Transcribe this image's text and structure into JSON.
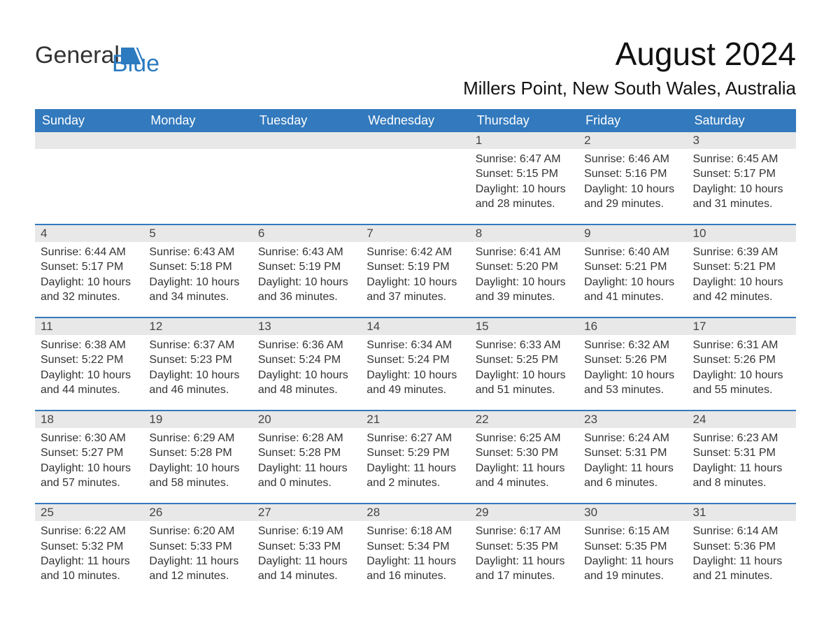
{
  "logo": {
    "word1": "General",
    "word2": "Blue"
  },
  "title": "August 2024",
  "location": "Millers Point, New South Wales, Australia",
  "colors": {
    "header_bg": "#3279bd",
    "header_text": "#ffffff",
    "daynum_bg": "#e8e8e8",
    "cell_border": "#3279bd",
    "text": "#333333",
    "logo_accent": "#2c7bc0",
    "page_bg": "#ffffff"
  },
  "layout": {
    "columns": 7,
    "rows": 5,
    "title_fontsize": 46,
    "location_fontsize": 26,
    "header_fontsize": 18,
    "body_fontsize": 16,
    "daynum_fontsize": 17,
    "logo_fontsize": 34
  },
  "weekdays": [
    "Sunday",
    "Monday",
    "Tuesday",
    "Wednesday",
    "Thursday",
    "Friday",
    "Saturday"
  ],
  "weeks": [
    [
      {
        "day": "",
        "sunrise": "",
        "sunset": "",
        "daylight": ""
      },
      {
        "day": "",
        "sunrise": "",
        "sunset": "",
        "daylight": ""
      },
      {
        "day": "",
        "sunrise": "",
        "sunset": "",
        "daylight": ""
      },
      {
        "day": "",
        "sunrise": "",
        "sunset": "",
        "daylight": ""
      },
      {
        "day": "1",
        "sunrise": "Sunrise: 6:47 AM",
        "sunset": "Sunset: 5:15 PM",
        "daylight": "Daylight: 10 hours and 28 minutes."
      },
      {
        "day": "2",
        "sunrise": "Sunrise: 6:46 AM",
        "sunset": "Sunset: 5:16 PM",
        "daylight": "Daylight: 10 hours and 29 minutes."
      },
      {
        "day": "3",
        "sunrise": "Sunrise: 6:45 AM",
        "sunset": "Sunset: 5:17 PM",
        "daylight": "Daylight: 10 hours and 31 minutes."
      }
    ],
    [
      {
        "day": "4",
        "sunrise": "Sunrise: 6:44 AM",
        "sunset": "Sunset: 5:17 PM",
        "daylight": "Daylight: 10 hours and 32 minutes."
      },
      {
        "day": "5",
        "sunrise": "Sunrise: 6:43 AM",
        "sunset": "Sunset: 5:18 PM",
        "daylight": "Daylight: 10 hours and 34 minutes."
      },
      {
        "day": "6",
        "sunrise": "Sunrise: 6:43 AM",
        "sunset": "Sunset: 5:19 PM",
        "daylight": "Daylight: 10 hours and 36 minutes."
      },
      {
        "day": "7",
        "sunrise": "Sunrise: 6:42 AM",
        "sunset": "Sunset: 5:19 PM",
        "daylight": "Daylight: 10 hours and 37 minutes."
      },
      {
        "day": "8",
        "sunrise": "Sunrise: 6:41 AM",
        "sunset": "Sunset: 5:20 PM",
        "daylight": "Daylight: 10 hours and 39 minutes."
      },
      {
        "day": "9",
        "sunrise": "Sunrise: 6:40 AM",
        "sunset": "Sunset: 5:21 PM",
        "daylight": "Daylight: 10 hours and 41 minutes."
      },
      {
        "day": "10",
        "sunrise": "Sunrise: 6:39 AM",
        "sunset": "Sunset: 5:21 PM",
        "daylight": "Daylight: 10 hours and 42 minutes."
      }
    ],
    [
      {
        "day": "11",
        "sunrise": "Sunrise: 6:38 AM",
        "sunset": "Sunset: 5:22 PM",
        "daylight": "Daylight: 10 hours and 44 minutes."
      },
      {
        "day": "12",
        "sunrise": "Sunrise: 6:37 AM",
        "sunset": "Sunset: 5:23 PM",
        "daylight": "Daylight: 10 hours and 46 minutes."
      },
      {
        "day": "13",
        "sunrise": "Sunrise: 6:36 AM",
        "sunset": "Sunset: 5:24 PM",
        "daylight": "Daylight: 10 hours and 48 minutes."
      },
      {
        "day": "14",
        "sunrise": "Sunrise: 6:34 AM",
        "sunset": "Sunset: 5:24 PM",
        "daylight": "Daylight: 10 hours and 49 minutes."
      },
      {
        "day": "15",
        "sunrise": "Sunrise: 6:33 AM",
        "sunset": "Sunset: 5:25 PM",
        "daylight": "Daylight: 10 hours and 51 minutes."
      },
      {
        "day": "16",
        "sunrise": "Sunrise: 6:32 AM",
        "sunset": "Sunset: 5:26 PM",
        "daylight": "Daylight: 10 hours and 53 minutes."
      },
      {
        "day": "17",
        "sunrise": "Sunrise: 6:31 AM",
        "sunset": "Sunset: 5:26 PM",
        "daylight": "Daylight: 10 hours and 55 minutes."
      }
    ],
    [
      {
        "day": "18",
        "sunrise": "Sunrise: 6:30 AM",
        "sunset": "Sunset: 5:27 PM",
        "daylight": "Daylight: 10 hours and 57 minutes."
      },
      {
        "day": "19",
        "sunrise": "Sunrise: 6:29 AM",
        "sunset": "Sunset: 5:28 PM",
        "daylight": "Daylight: 10 hours and 58 minutes."
      },
      {
        "day": "20",
        "sunrise": "Sunrise: 6:28 AM",
        "sunset": "Sunset: 5:28 PM",
        "daylight": "Daylight: 11 hours and 0 minutes."
      },
      {
        "day": "21",
        "sunrise": "Sunrise: 6:27 AM",
        "sunset": "Sunset: 5:29 PM",
        "daylight": "Daylight: 11 hours and 2 minutes."
      },
      {
        "day": "22",
        "sunrise": "Sunrise: 6:25 AM",
        "sunset": "Sunset: 5:30 PM",
        "daylight": "Daylight: 11 hours and 4 minutes."
      },
      {
        "day": "23",
        "sunrise": "Sunrise: 6:24 AM",
        "sunset": "Sunset: 5:31 PM",
        "daylight": "Daylight: 11 hours and 6 minutes."
      },
      {
        "day": "24",
        "sunrise": "Sunrise: 6:23 AM",
        "sunset": "Sunset: 5:31 PM",
        "daylight": "Daylight: 11 hours and 8 minutes."
      }
    ],
    [
      {
        "day": "25",
        "sunrise": "Sunrise: 6:22 AM",
        "sunset": "Sunset: 5:32 PM",
        "daylight": "Daylight: 11 hours and 10 minutes."
      },
      {
        "day": "26",
        "sunrise": "Sunrise: 6:20 AM",
        "sunset": "Sunset: 5:33 PM",
        "daylight": "Daylight: 11 hours and 12 minutes."
      },
      {
        "day": "27",
        "sunrise": "Sunrise: 6:19 AM",
        "sunset": "Sunset: 5:33 PM",
        "daylight": "Daylight: 11 hours and 14 minutes."
      },
      {
        "day": "28",
        "sunrise": "Sunrise: 6:18 AM",
        "sunset": "Sunset: 5:34 PM",
        "daylight": "Daylight: 11 hours and 16 minutes."
      },
      {
        "day": "29",
        "sunrise": "Sunrise: 6:17 AM",
        "sunset": "Sunset: 5:35 PM",
        "daylight": "Daylight: 11 hours and 17 minutes."
      },
      {
        "day": "30",
        "sunrise": "Sunrise: 6:15 AM",
        "sunset": "Sunset: 5:35 PM",
        "daylight": "Daylight: 11 hours and 19 minutes."
      },
      {
        "day": "31",
        "sunrise": "Sunrise: 6:14 AM",
        "sunset": "Sunset: 5:36 PM",
        "daylight": "Daylight: 11 hours and 21 minutes."
      }
    ]
  ]
}
